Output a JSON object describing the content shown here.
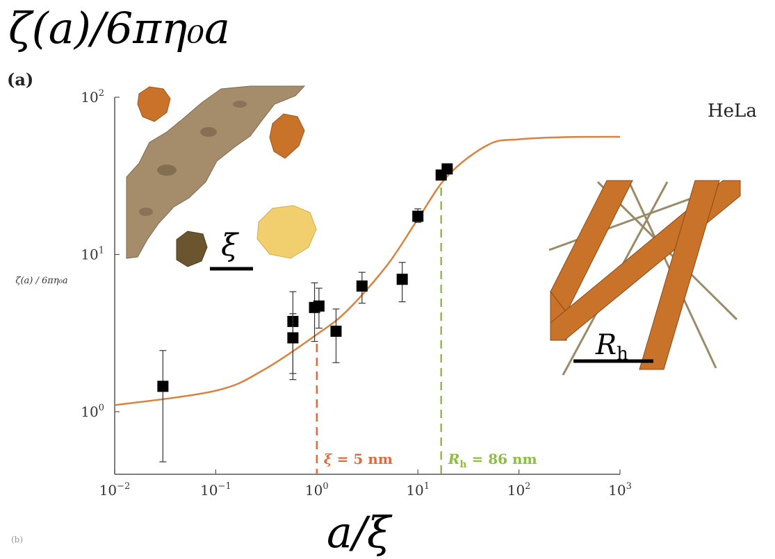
{
  "title": "ζ(a)/6πη₀a",
  "panel_label": "(a)",
  "footnote": "(b)",
  "chart_data": {
    "type": "scatter",
    "xscale": "log",
    "yscale": "log",
    "xlim": [
      0.01,
      1000
    ],
    "ylim": [
      0.4,
      100
    ],
    "xlabel": "a/ξ",
    "ylabel": "ζ(a) / 6πη₀a",
    "xticks": [
      {
        "value": 0.01,
        "base": "10",
        "exp": "−2"
      },
      {
        "value": 0.1,
        "base": "10",
        "exp": "−1"
      },
      {
        "value": 1,
        "base": "10",
        "exp": "0"
      },
      {
        "value": 10,
        "base": "10",
        "exp": "1"
      },
      {
        "value": 100,
        "base": "10",
        "exp": "2"
      },
      {
        "value": 1000,
        "base": "10",
        "exp": "3"
      }
    ],
    "yticks": [
      {
        "value": 1,
        "base": "10",
        "exp": "0"
      },
      {
        "value": 10,
        "base": "10",
        "exp": "1"
      },
      {
        "value": 100,
        "base": "10",
        "exp": "2"
      }
    ],
    "points": [
      {
        "x": 0.03,
        "y": 1.45,
        "ylo": 0.48,
        "yhi": 2.45
      },
      {
        "x": 0.58,
        "y": 3.75,
        "ylo": 1.75,
        "yhi": 5.8
      },
      {
        "x": 0.58,
        "y": 2.95,
        "ylo": 1.6,
        "yhi": 4.2
      },
      {
        "x": 0.95,
        "y": 4.6,
        "ylo": 2.8,
        "yhi": 6.6
      },
      {
        "x": 1.05,
        "y": 4.7,
        "ylo": 3.4,
        "yhi": 6.1
      },
      {
        "x": 1.55,
        "y": 3.25,
        "ylo": 2.05,
        "yhi": 4.5
      },
      {
        "x": 2.8,
        "y": 6.3,
        "ylo": 4.9,
        "yhi": 7.7
      },
      {
        "x": 7.0,
        "y": 6.95,
        "ylo": 5.0,
        "yhi": 8.9
      },
      {
        "x": 10.0,
        "y": 17.5,
        "ylo": 16.0,
        "yhi": 19.5
      },
      {
        "x": 17.0,
        "y": 32.0,
        "ylo": 30.0,
        "yhi": 34.0
      },
      {
        "x": 19.5,
        "y": 35.0,
        "ylo": 33.0,
        "yhi": 37.0
      }
    ],
    "fit_curve": [
      {
        "x": 0.01,
        "y": 1.1
      },
      {
        "x": 0.1,
        "y": 1.36
      },
      {
        "x": 0.3,
        "y": 1.85
      },
      {
        "x": 1,
        "y": 3.1
      },
      {
        "x": 2,
        "y": 4.4
      },
      {
        "x": 5,
        "y": 8.6
      },
      {
        "x": 10,
        "y": 16.8
      },
      {
        "x": 20,
        "y": 32
      },
      {
        "x": 50,
        "y": 50
      },
      {
        "x": 100,
        "y": 54
      },
      {
        "x": 300,
        "y": 55.8
      },
      {
        "x": 1000,
        "y": 56
      }
    ],
    "vlines": [
      {
        "x": 1,
        "label_lhs": "ξ",
        "label_rhs": " = 5 nm",
        "color": "#e06a3a"
      },
      {
        "x": 17,
        "label_lhs": "R",
        "label_sub": "h",
        "label_rhs": " = 86 nm",
        "color": "#8cbf3f"
      }
    ],
    "curve_color": "#d9823f",
    "annotations": {
      "cell_line": "HeLa",
      "xi_symbol": "ξ",
      "rh_symbol": "R",
      "rh_sub": "h"
    }
  }
}
